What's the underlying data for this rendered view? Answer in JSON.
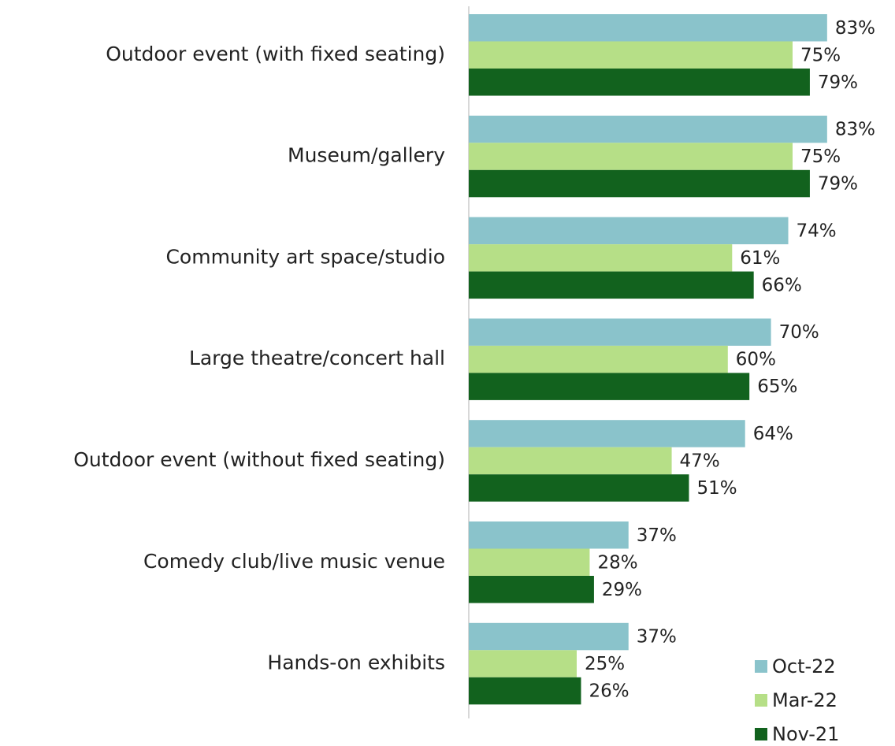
{
  "chart_data": {
    "type": "barh",
    "categories": [
      "Outdoor event (with fixed seating)",
      "Museum/gallery",
      "Community art space/studio",
      "Large theatre/concert hall",
      "Outdoor event (without fixed seating)",
      "Comedy club/live music venue",
      "Hands-on exhibits"
    ],
    "series": [
      {
        "name": "Oct-22",
        "color": "#8ac3cb",
        "values": [
          83,
          83,
          74,
          70,
          64,
          37,
          37
        ],
        "value_labels": [
          "83%",
          "83%",
          "74%",
          "70%",
          "64%",
          "37%",
          "37%"
        ]
      },
      {
        "name": "Mar-22",
        "color": "#b6df87",
        "values": [
          75,
          75,
          61,
          60,
          47,
          28,
          25
        ],
        "value_labels": [
          "75%",
          "75%",
          "61%",
          "60%",
          "47%",
          "28%",
          "25%"
        ]
      },
      {
        "name": "Nov-21",
        "color": "#12621e",
        "values": [
          79,
          79,
          66,
          65,
          51,
          29,
          26
        ],
        "value_labels": [
          "79%",
          "79%",
          "66%",
          "65%",
          "51%",
          "29%",
          "26%"
        ]
      }
    ],
    "xlim": [
      0,
      100
    ],
    "legend": "bottom-right"
  }
}
